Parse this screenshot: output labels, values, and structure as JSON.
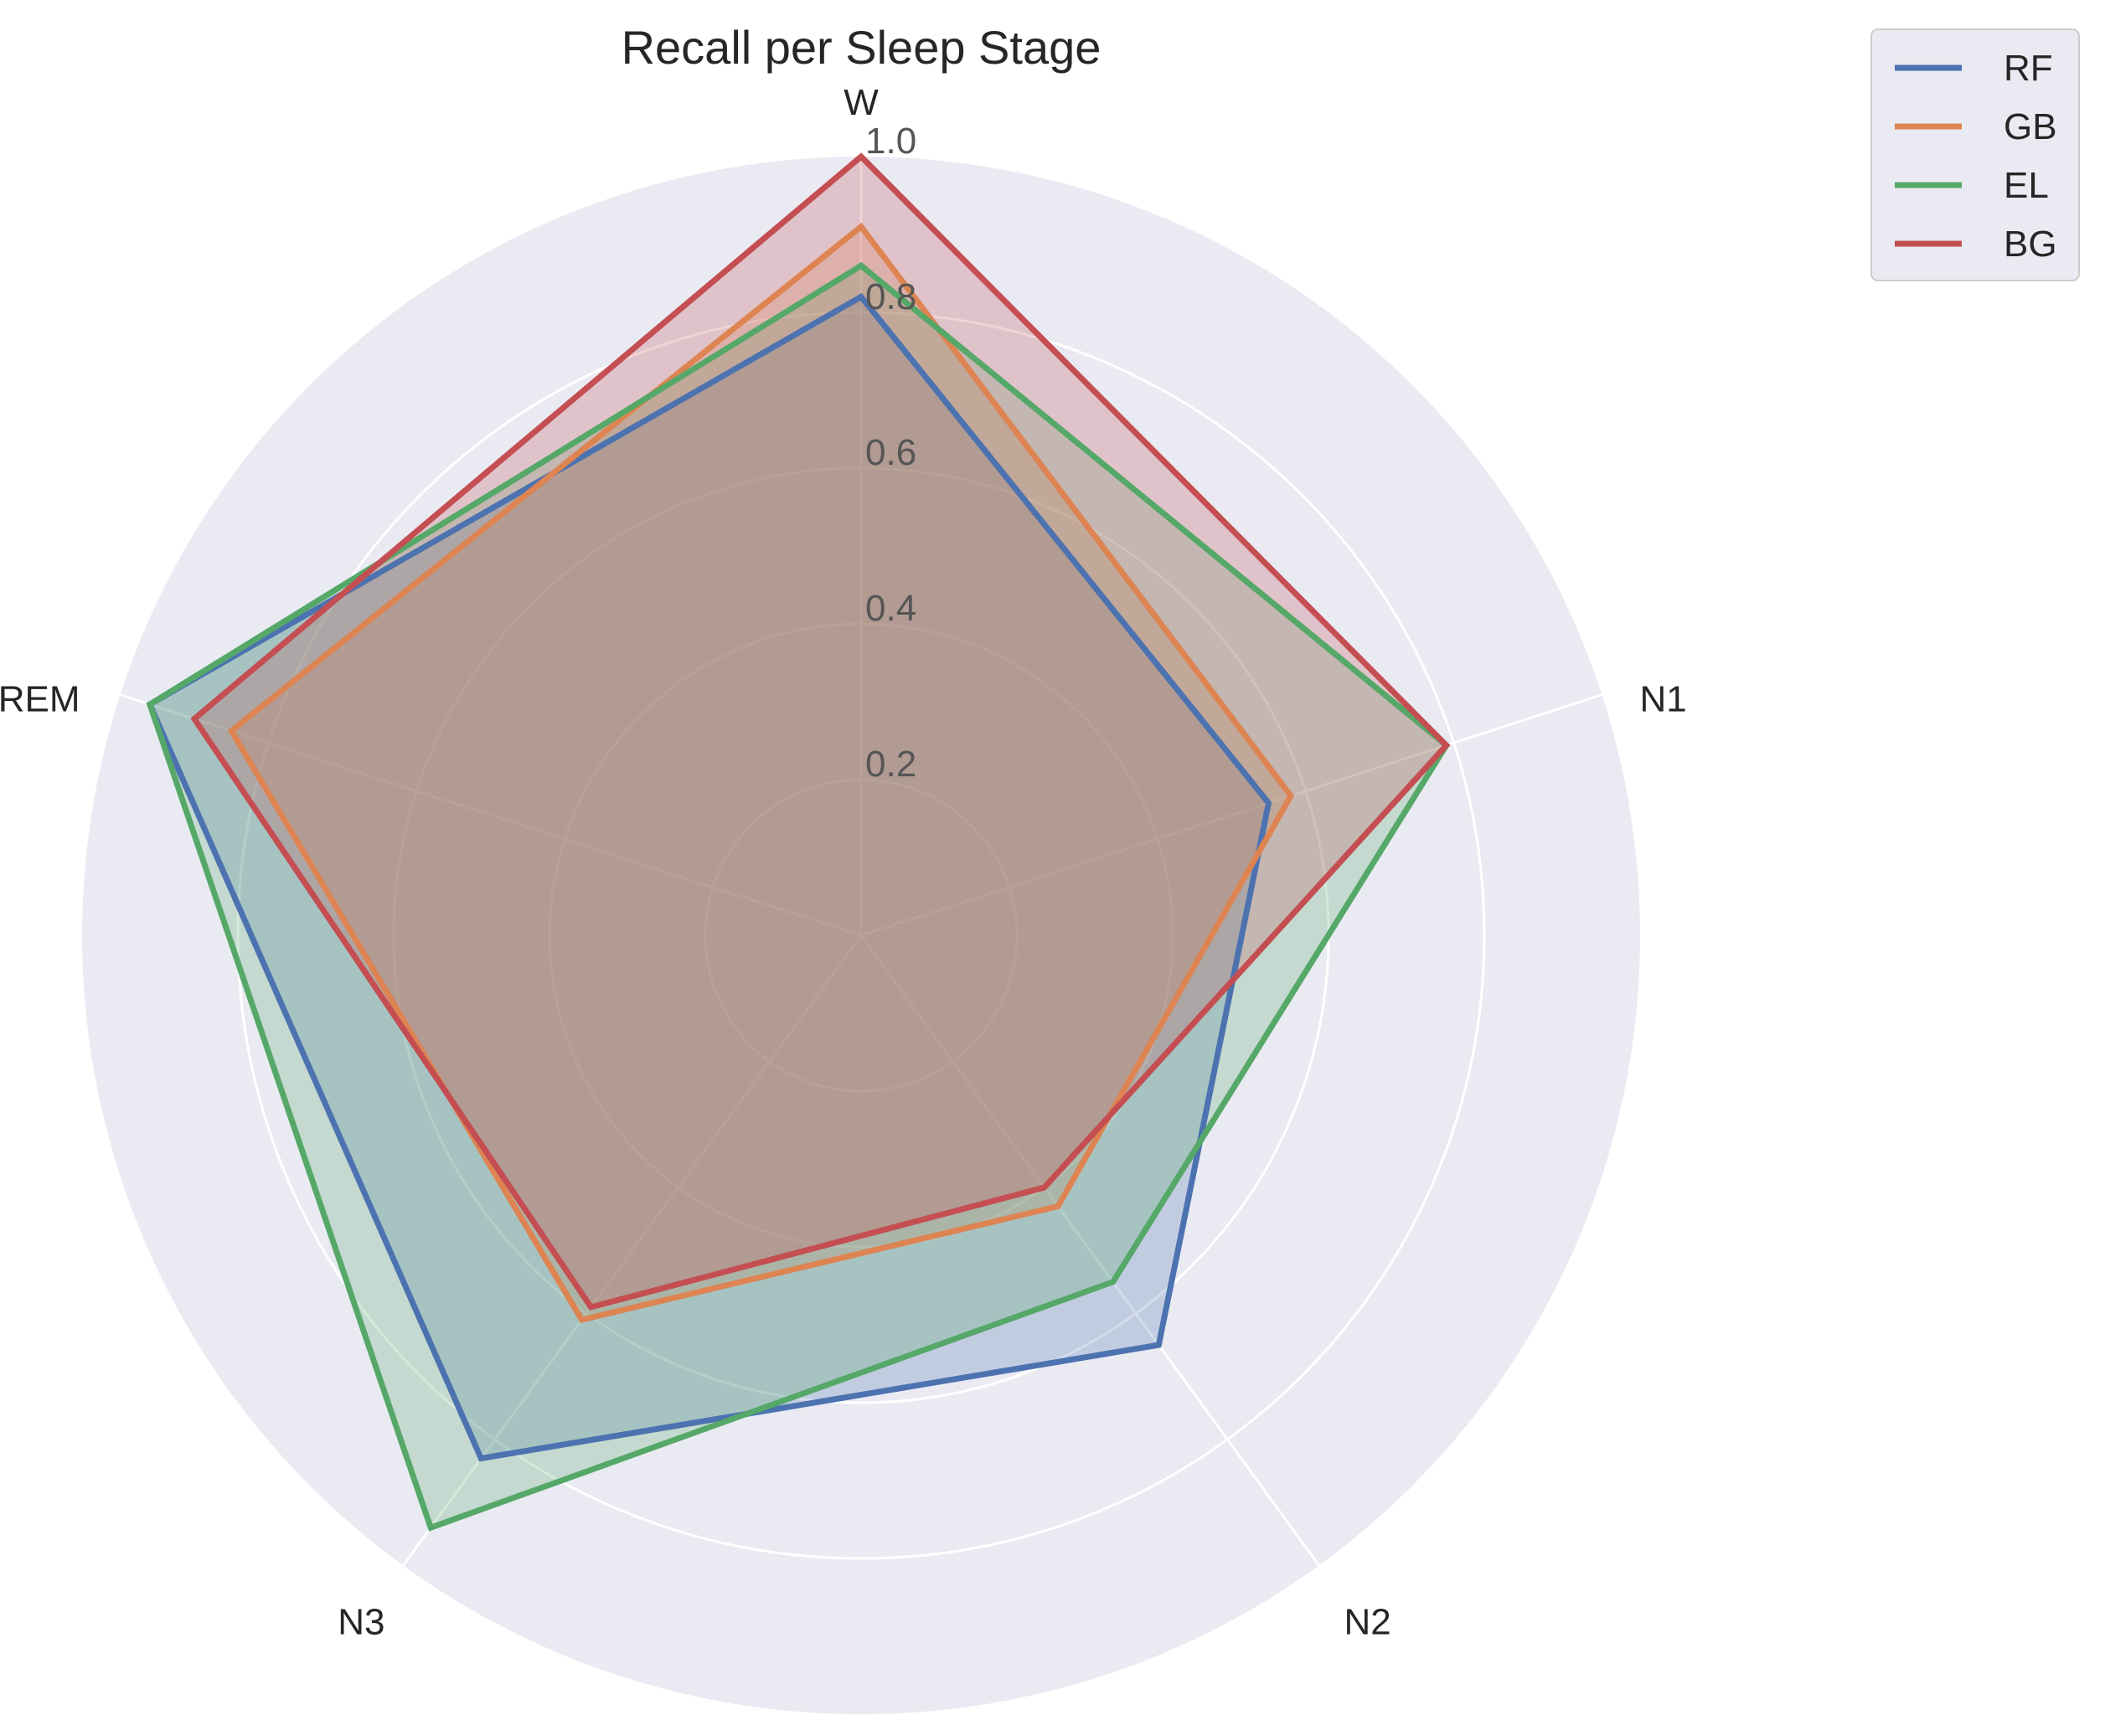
{
  "chart_data": {
    "type": "radar",
    "title": "Recall per Sleep Stage",
    "categories": [
      "W",
      "N1",
      "N2",
      "N3",
      "REM"
    ],
    "rlim": [
      0,
      1.0
    ],
    "rticks": [
      0.2,
      0.4,
      0.6,
      0.8,
      1.0
    ],
    "rtick_labels": [
      "0.2",
      "0.4",
      "0.6",
      "0.8",
      "1.0"
    ],
    "grid": true,
    "legend_position": "top-right, outside plot",
    "series": [
      {
        "name": "RF",
        "color": "#4c72b0",
        "values": [
          0.82,
          0.55,
          0.65,
          0.83,
          0.96
        ]
      },
      {
        "name": "GB",
        "color": "#dd8452",
        "values": [
          0.91,
          0.58,
          0.43,
          0.61,
          0.85
        ]
      },
      {
        "name": "EL",
        "color": "#55a868",
        "values": [
          0.86,
          0.79,
          0.55,
          0.94,
          0.96
        ]
      },
      {
        "name": "BG",
        "color": "#c44e52",
        "values": [
          1.0,
          0.79,
          0.4,
          0.59,
          0.9
        ]
      }
    ]
  }
}
